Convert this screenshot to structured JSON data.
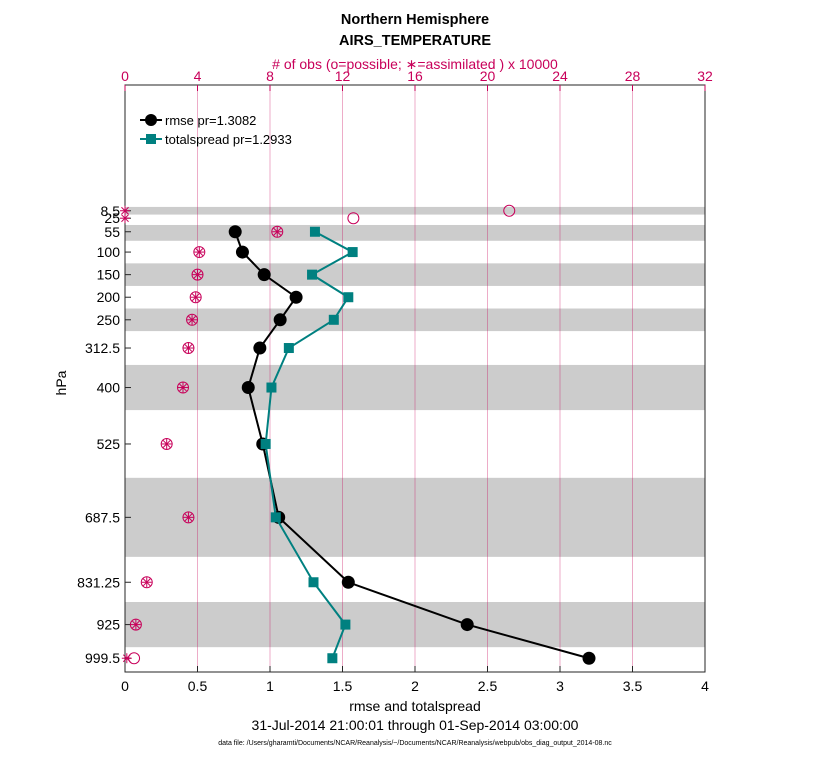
{
  "chart_data": {
    "type": "line",
    "title": "Northern Hemisphere",
    "subtitle": "AIRS_TEMPERATURE",
    "top_axis_label": "# of obs (o=possible; ∗=assimilated ) x 10000",
    "xlabel": "rmse and totalspread",
    "ylabel": "hPa",
    "date_range": "31-Jul-2014 21:00:01 through 01-Sep-2014 03:00:00",
    "datafile": "data file: /Users/gharamti/Documents/NCAR/Reanalysis/~/Documents/NCAR/Reanalysis/webpub/obs_diag_output_2014-08.nc",
    "xlim": [
      0,
      4
    ],
    "xticks": [
      0,
      0.5,
      1,
      1.5,
      2,
      2.5,
      3,
      3.5,
      4
    ],
    "xtick_labels": [
      "0",
      "0.5",
      "1",
      "1.5",
      "2",
      "2.5",
      "3",
      "3.5",
      "4"
    ],
    "top_xlim": [
      0,
      32
    ],
    "top_xticks": [
      0,
      4,
      8,
      12,
      16,
      20,
      24,
      28,
      32
    ],
    "top_xtick_labels": [
      "0",
      "4",
      "8",
      "12",
      "16",
      "20",
      "24",
      "28",
      "32"
    ],
    "ylim": [
      -270,
      1030
    ],
    "levels": [
      8.5,
      25,
      55,
      100,
      150,
      200,
      250,
      312.5,
      400,
      525,
      687.5,
      831.25,
      925,
      999.5
    ],
    "level_labels": [
      "8.5",
      "25",
      "55",
      "100",
      "150",
      "200",
      "250",
      "312.5",
      "400",
      "525",
      "687.5",
      "831.25",
      "925",
      "999.5"
    ],
    "shaded_layers": [
      [
        0,
        17
      ],
      [
        40,
        75
      ],
      [
        125,
        175
      ],
      [
        225,
        275
      ],
      [
        350,
        450
      ],
      [
        600,
        775
      ],
      [
        875,
        975
      ]
    ],
    "legend_position": "top-left",
    "series": [
      {
        "name": "rmse",
        "legend": "rmse pr=1.3082",
        "color": "#000000",
        "marker": "circle",
        "levels": [
          55,
          100,
          150,
          200,
          250,
          312.5,
          400,
          525,
          687.5,
          831.25,
          925,
          999.5
        ],
        "values": [
          0.76,
          0.81,
          0.96,
          1.18,
          1.07,
          0.93,
          0.85,
          0.95,
          1.06,
          1.54,
          2.36,
          3.2
        ]
      },
      {
        "name": "totalspread",
        "legend": "totalspread pr=1.2933",
        "color": "#008080",
        "marker": "square",
        "levels": [
          55,
          100,
          150,
          200,
          250,
          312.5,
          400,
          525,
          687.5,
          831.25,
          925,
          999.5
        ],
        "values": [
          1.31,
          1.57,
          1.29,
          1.54,
          1.44,
          1.13,
          1.01,
          0.97,
          1.04,
          1.3,
          1.52,
          1.43
        ]
      }
    ],
    "obs_possible": {
      "levels": [
        8.5,
        25,
        55,
        100,
        150,
        200,
        250,
        312.5,
        400,
        525,
        687.5,
        831.25,
        925,
        999.5
      ],
      "values": [
        21.2,
        12.6,
        8.4,
        4.1,
        4.0,
        3.9,
        3.7,
        3.5,
        3.2,
        2.3,
        3.5,
        1.2,
        0.6,
        0.5
      ]
    },
    "obs_assimilated": {
      "levels": [
        8.5,
        25,
        55,
        100,
        150,
        200,
        250,
        312.5,
        400,
        525,
        687.5,
        831.25,
        925,
        999.5
      ],
      "values": [
        0,
        0,
        8.4,
        4.1,
        4.0,
        3.9,
        3.7,
        3.5,
        3.2,
        2.3,
        3.5,
        1.2,
        0.6,
        0.1
      ]
    },
    "colors": {
      "obs_axis": "#c8005a",
      "rmse": "#000000",
      "spread": "#008080",
      "shade": "#cccccc"
    }
  }
}
